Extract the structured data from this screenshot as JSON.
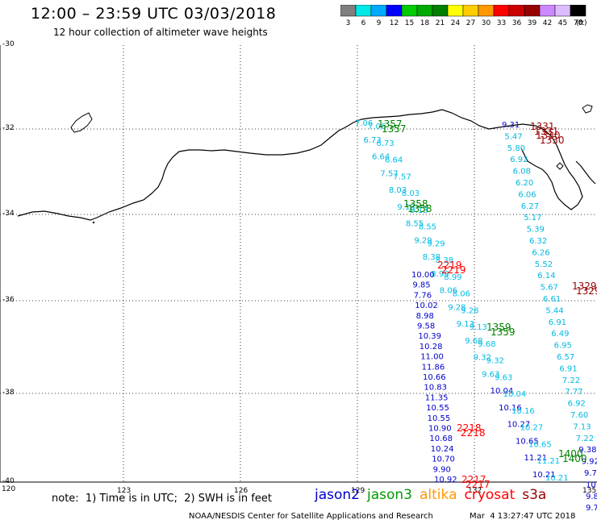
{
  "header": {
    "title": "12:00 – 23:59 UTC 03/03/2018",
    "subtitle": "12 hour collection of altimeter wave heights"
  },
  "colorbar": {
    "unit_label": "(ft)",
    "swatches": [
      {
        "color": "#7f7f7f",
        "label": "3"
      },
      {
        "color": "#00e8e8",
        "label": "6"
      },
      {
        "color": "#00aaff",
        "label": "9"
      },
      {
        "color": "#0000ff",
        "label": "12"
      },
      {
        "color": "#00cc00",
        "label": "15"
      },
      {
        "color": "#00aa00",
        "label": "18"
      },
      {
        "color": "#007f00",
        "label": "21"
      },
      {
        "color": "#ffff00",
        "label": "24"
      },
      {
        "color": "#ffcc00",
        "label": "27"
      },
      {
        "color": "#ff9900",
        "label": "30"
      },
      {
        "color": "#ff0000",
        "label": "33"
      },
      {
        "color": "#cc0000",
        "label": "36"
      },
      {
        "color": "#990000",
        "label": "39"
      },
      {
        "color": "#cc88ff",
        "label": "42"
      },
      {
        "color": "#ddbbff",
        "label": "45"
      },
      {
        "color": "#000000",
        "label": "70"
      }
    ]
  },
  "axes": {
    "lat_labels": [
      "-30",
      "-32",
      "-34",
      "-36",
      "-38",
      "-40"
    ],
    "lon_labels": [
      "120",
      "123",
      "126",
      "129",
      "132",
      "135"
    ]
  },
  "tracks": {
    "time_labels": [
      {
        "text": "1357",
        "color": "#008000"
      },
      {
        "text": "1358",
        "color": "#008000"
      },
      {
        "text": "1359",
        "color": "#008000"
      },
      {
        "text": "1400",
        "color": "#008000"
      },
      {
        "text": "2219",
        "color": "#ff0000"
      },
      {
        "text": "2218",
        "color": "#ff0000"
      },
      {
        "text": "2217",
        "color": "#ff0000"
      },
      {
        "text": "1331",
        "color": "#990000"
      },
      {
        "text": "1330",
        "color": "#990000"
      },
      {
        "text": "1329",
        "color": "#990000"
      }
    ],
    "cryosat_values": [
      "10.00",
      "9.85",
      "7.76",
      "10.02",
      "8.98",
      "9.58",
      "10.39",
      "10.28",
      "11.00",
      "11.86",
      "10.66",
      "10.83",
      "11.35",
      "10.55",
      "10.55",
      "10.90",
      "10.68",
      "10.24",
      "10.70",
      "9.90",
      "10.92"
    ],
    "jason3_values": [
      "7.06",
      "6.73",
      "6.64",
      "7.57",
      "8.03",
      "9.13",
      "8.55",
      "9.29",
      "8.38",
      "8.99",
      "8.06",
      "9.28",
      "9.13",
      "9.68",
      "9.32",
      "9.63",
      "10.04",
      "10.16",
      "10.27",
      "10.65",
      "11.21",
      "10.21"
    ],
    "s3a_values": [
      "9.31",
      "5.47",
      "5.80",
      "6.92",
      "6.08",
      "6.20",
      "6.06",
      "6.27",
      "5.17",
      "5.39",
      "6.32",
      "6.26",
      "5.52",
      "6.14",
      "5.67",
      "6.61",
      "5.44",
      "6.91",
      "6.49",
      "6.95",
      "6.57",
      "6.91",
      "7.22",
      "7.77",
      "6.92",
      "7.60",
      "7.13",
      "7.22",
      "9.38",
      "9.92",
      "9.70",
      "10.30",
      "9.80",
      "9.70"
    ]
  },
  "footer": {
    "note": "note:  1) Time is in UTC;  2) SWH is in feet",
    "legend": [
      {
        "label": "jason2",
        "color": "#0000cc"
      },
      {
        "label": "jason3",
        "color": "#009900"
      },
      {
        "label": "altika",
        "color": "#ff9900"
      },
      {
        "label": "cryosat",
        "color": "#ff0000"
      },
      {
        "label": "s3a",
        "color": "#990000"
      }
    ],
    "credit": "NOAA/NESDIS Center for Satellite Applications and Research",
    "timestamp": "Mar  4 13:27:47 UTC 2018"
  }
}
